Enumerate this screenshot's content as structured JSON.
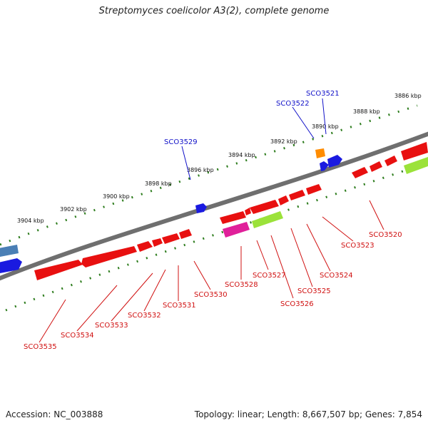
{
  "title": "Streptomyces coelicolor A3(2), complete genome",
  "footer": {
    "accession_label": "Accession:",
    "accession": "NC_003888",
    "topology_label": "Topology:",
    "topology": "linear",
    "length_label": "Length:",
    "length": "8,667,507 bp",
    "genes_label": "Genes:",
    "genes": "7,854"
  },
  "scale_labels": [
    "3904 kbp",
    "3902 kbp",
    "3900 kbp",
    "3898 kbp",
    "3896 kbp",
    "3894 kbp",
    "3892 kbp",
    "3890 kbp",
    "3888 kbp",
    "3886 kbp"
  ],
  "upper_strand_labels": [
    "SCO3529",
    "SCO3522",
    "SCO3521"
  ],
  "lower_strand_labels": [
    "SCO3535",
    "SCO3534",
    "SCO3533",
    "SCO3532",
    "SCO3531",
    "SCO3530",
    "SCO3528",
    "SCO3527",
    "SCO3526",
    "SCO3525",
    "SCO3524",
    "SCO3523",
    "SCO3520"
  ],
  "colors": {
    "upper_label": "#1010c8",
    "lower_label": "#d01010",
    "backbone": "#777777",
    "ticks": "#2e7d1e",
    "gene_red": "#e81010",
    "gene_blue": "#1a1ae0",
    "gene_steel": "#4a7fb5",
    "gene_orange": "#ff8c00",
    "gene_magenta": "#e0209a",
    "gene_lime": "#9be23a"
  }
}
